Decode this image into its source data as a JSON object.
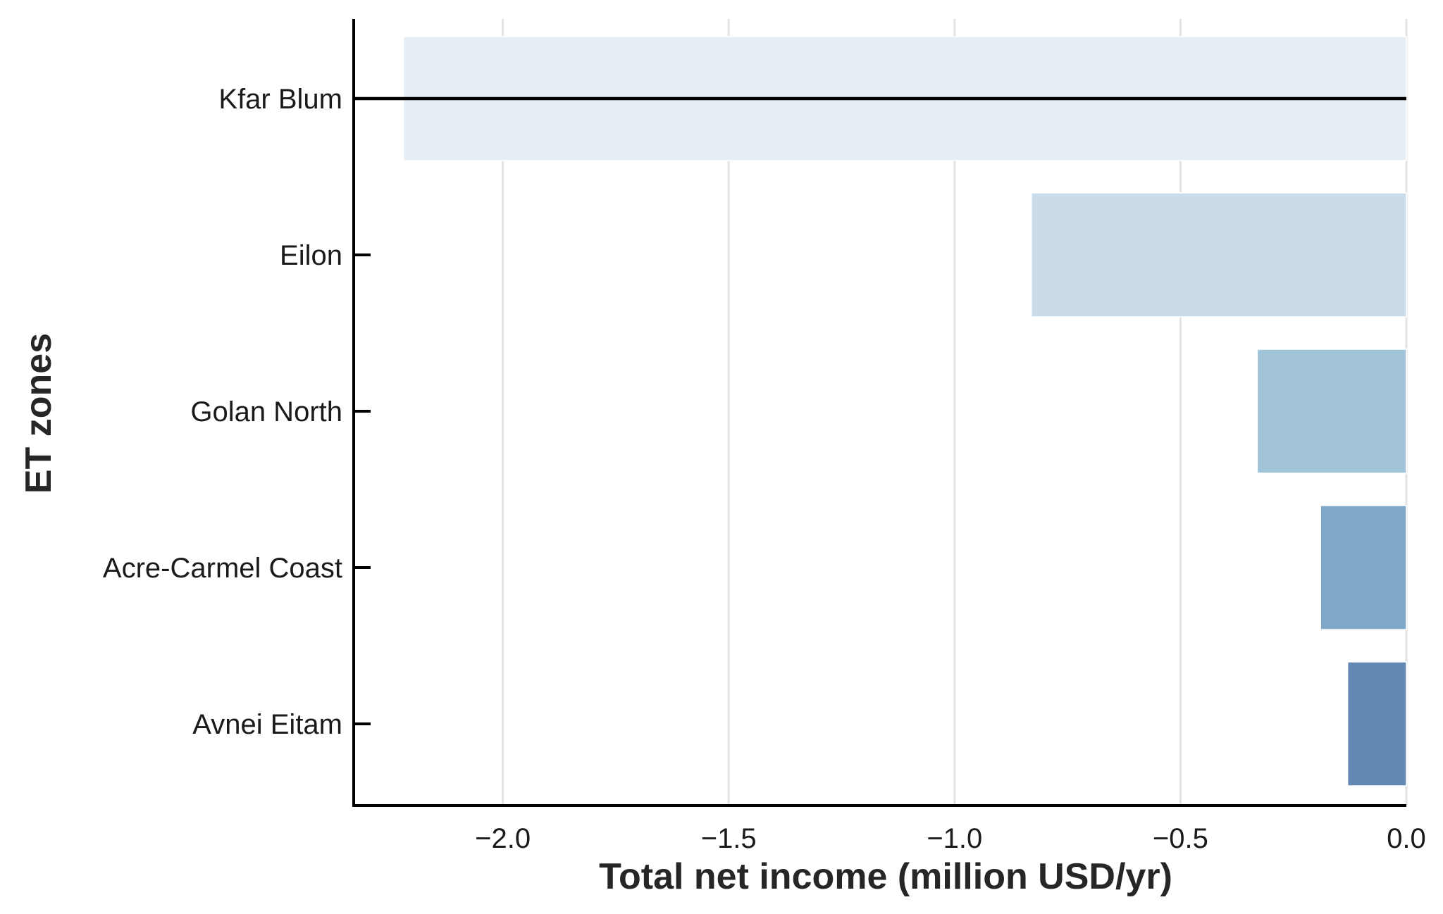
{
  "chart_data": {
    "type": "bar",
    "orientation": "horizontal",
    "xlabel": "Total net income (million USD/yr)",
    "ylabel": "ET zones",
    "xlim": [
      -2.33,
      0.0
    ],
    "xticks": [
      -2.0,
      -1.5,
      -1.0,
      -0.5,
      0.0
    ],
    "xtick_labels": [
      "−2.0",
      "−1.5",
      "−1.0",
      "−0.5",
      "0.0"
    ],
    "categories": [
      "Kfar Blum",
      "Eilon",
      "Golan North",
      "Acre-Carmel Coast",
      "Avnei Eitam"
    ],
    "values": [
      -2.22,
      -0.83,
      -0.33,
      -0.19,
      -0.13
    ],
    "colors": [
      "#e6eef6",
      "#cadcea",
      "#a1c3d8",
      "#7fa8c8",
      "#6389b0"
    ],
    "reference_line": {
      "category": "Kfar Blum",
      "color": "#000000"
    },
    "grid": {
      "x": true,
      "y": false
    },
    "legend": "none"
  }
}
